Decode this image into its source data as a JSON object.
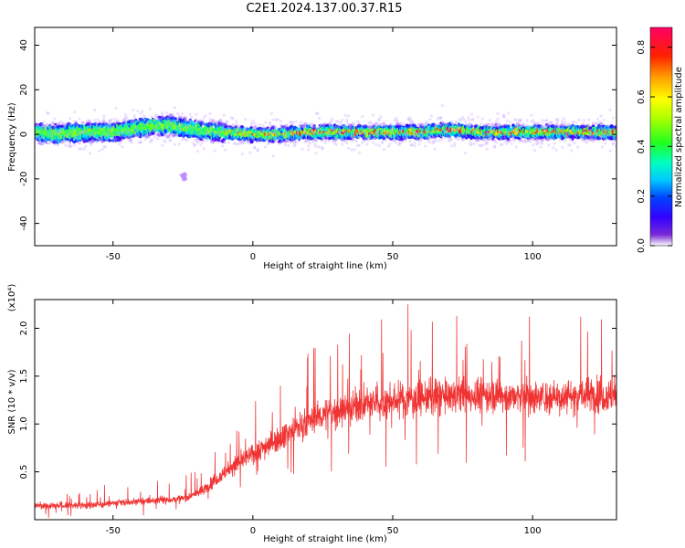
{
  "title": "C2E1.2024.137.00.37.R15",
  "chart_data": [
    {
      "type": "heatmap",
      "xlabel": "Height of straight line (km)",
      "ylabel": "Frequency (Hz)",
      "xlim": [
        -78,
        130
      ],
      "ylim": [
        -50,
        48
      ],
      "xticks": [
        -50,
        0,
        50,
        100
      ],
      "yticks": [
        -40,
        -20,
        0,
        20,
        40
      ],
      "xtick_labels": [
        "-50",
        "0",
        "50",
        "100"
      ],
      "ytick_labels": [
        "-40",
        "-20",
        "0",
        "20",
        "40"
      ],
      "ridge": [
        {
          "x": -78,
          "y": 1
        },
        {
          "x": -70,
          "y": 0
        },
        {
          "x": -60,
          "y": 1
        },
        {
          "x": -50,
          "y": 1
        },
        {
          "x": -40,
          "y": 3
        },
        {
          "x": -30,
          "y": 4
        },
        {
          "x": -20,
          "y": 2
        },
        {
          "x": -10,
          "y": 1
        },
        {
          "x": 0,
          "y": 0
        },
        {
          "x": 10,
          "y": 0
        },
        {
          "x": 20,
          "y": 1
        },
        {
          "x": 30,
          "y": 1
        },
        {
          "x": 40,
          "y": 1
        },
        {
          "x": 50,
          "y": 1
        },
        {
          "x": 60,
          "y": 1
        },
        {
          "x": 70,
          "y": 2
        },
        {
          "x": 80,
          "y": 1
        },
        {
          "x": 90,
          "y": 1
        },
        {
          "x": 100,
          "y": 1
        },
        {
          "x": 110,
          "y": 1
        },
        {
          "x": 120,
          "y": 1
        },
        {
          "x": 130,
          "y": 1
        }
      ],
      "colorbar": {
        "label": "Normalized spectral amplitude",
        "range": [
          0,
          0.88
        ],
        "ticks": [
          0.0,
          0.2,
          0.4,
          0.6,
          0.8
        ],
        "tick_labels": [
          "0.0",
          "0.2",
          "0.4",
          "0.6",
          "0.8"
        ]
      }
    },
    {
      "type": "line",
      "xlabel": "Height of straight line (km)",
      "ylabel": "SNR (10 * v/v)",
      "multiplier_label": "(x10⁴)",
      "xlim": [
        -78,
        130
      ],
      "ylim": [
        0,
        2.3
      ],
      "xticks": [
        -50,
        0,
        50,
        100
      ],
      "yticks": [
        0.5,
        1.0,
        1.5,
        2.0
      ],
      "xtick_labels": [
        "-50",
        "0",
        "50",
        "100"
      ],
      "ytick_labels": [
        "0.5",
        "1.0",
        "1.5",
        "2.0"
      ],
      "color": "#f03434",
      "series": [
        {
          "trend_x": [
            -78,
            -60,
            -45,
            -35,
            -25,
            -18,
            -12,
            -5,
            5,
            15,
            25,
            35,
            45,
            55,
            65,
            75,
            85,
            95,
            105,
            115,
            130
          ],
          "trend_y": [
            0.15,
            0.15,
            0.18,
            0.2,
            0.22,
            0.3,
            0.45,
            0.6,
            0.78,
            0.95,
            1.1,
            1.18,
            1.22,
            1.26,
            1.28,
            1.3,
            1.3,
            1.28,
            1.28,
            1.3,
            1.3
          ]
        }
      ]
    }
  ]
}
